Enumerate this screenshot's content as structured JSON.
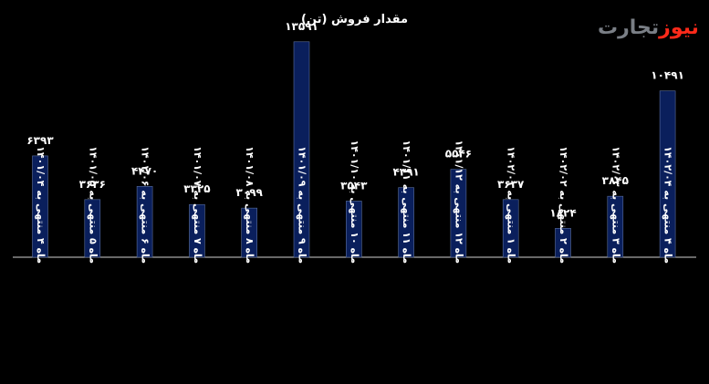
{
  "brand": {
    "part1": "نیوز",
    "part2": "تجارت",
    "color_accent": "#ff2a1a",
    "color_muted": "#7a7f86"
  },
  "chart_data": {
    "type": "bar",
    "title": "مقدار فروش (تن)",
    "xlabel": "",
    "ylabel": "",
    "grid": false,
    "bar_color": "#0a1f5c",
    "bar_edge": "#5a6f9c",
    "ylim": [
      0,
      14500
    ],
    "categories": [
      "ماه ۴ منتهی به ۱۴۰۱/۰۴",
      "ماه ۵ منتهی به ۱۴۰۱/۰۵",
      "ماه ۶ منتهی به ۱۴۰۱/۰۶",
      "ماه ۷ منتهی به ۱۴۰۱/۰۷",
      "ماه ۸ منتهی به ۱۴۰۱/۰۸",
      "ماه ۹ منتهی به ۱۴۰۱/۰۹",
      "ماه ۱۰ منتهی به ۱۴۰۱/۱۰",
      "ماه ۱۱ منتهی به ۱۴۰۱/۱۱",
      "ماه ۱۲ منتهی به ۱۴۰۱/۱۲",
      "ماه ۱ منتهی به ۱۴۰۲/۰۱",
      "ماه ۲ منتهی به ۱۴۰۲/۰۲",
      "ماه ۳ منتهی به ۱۴۰۲/۰۳",
      "ماه ۴ منتهی به ۱۴۰۲/۰۴"
    ],
    "values": [
      6393,
      3636,
      4470,
      3325,
      3099,
      13591,
      3543,
      4391,
      5546,
      3637,
      1824,
      3845,
      10491
    ],
    "value_labels": [
      "۶۳۹۳",
      "۳۶۳۶",
      "۴۴۷۰",
      "۳۳۲۵",
      "۳۰۹۹",
      "۱۳۵۹۱",
      "۳۵۴۳",
      "۴۳۹۱",
      "۵۵۴۶",
      "۳۶۳۷",
      "۱۸۲۴",
      "۳۸۴۵",
      "۱۰۴۹۱"
    ]
  }
}
